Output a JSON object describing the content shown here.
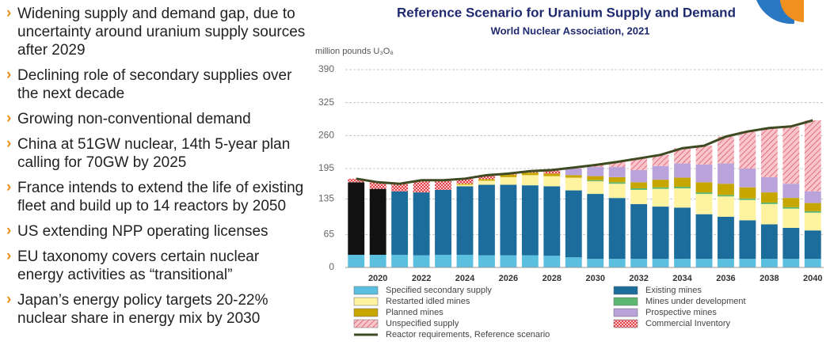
{
  "bullets": [
    "Widening supply and demand gap, due to uncertainty around uranium supply sources after 2029",
    "Declining role of secondary supplies over the next decade",
    "Growing non-conventional demand",
    "China at 51GW nuclear, 14th 5-year plan calling for 70GW by 2025",
    "France intends to extend the life of existing fleet and build up to 14 reactors by 2050",
    "US extending NPP operating licenses",
    "EU taxonomy covers certain nuclear energy activities as “transitional”",
    "Japan’s energy policy targets 20-22% nuclear share in energy mix by 2030"
  ],
  "chart_data": {
    "type": "bar",
    "stacked": true,
    "title": "Reference Scenario for Uranium Supply and Demand",
    "subtitle": "World Nuclear Association, 2021",
    "y_label": "million pounds U₃O₈",
    "categories": [
      null,
      "2020",
      null,
      "2022",
      null,
      "2024",
      null,
      "2026",
      null,
      "2028",
      null,
      "2030",
      null,
      "2032",
      null,
      "2034",
      null,
      "2036",
      null,
      "2038",
      null,
      "2040"
    ],
    "ylim": [
      0,
      390
    ],
    "yticks": [
      0,
      65,
      135,
      195,
      260,
      325,
      390
    ],
    "series": [
      {
        "name": "Specified secondary supply",
        "color": "#5bbfe0",
        "values": [
          25,
          25,
          25,
          24,
          25,
          25,
          24,
          24,
          24,
          23,
          20,
          17,
          17,
          17,
          17,
          17,
          17,
          17,
          17,
          17,
          17,
          17
        ]
      },
      {
        "name": "Existing mines",
        "color": "#1c6d9c",
        "colors": [
          "#111111",
          "#111111",
          null,
          null,
          null,
          null,
          null,
          null,
          null,
          null,
          null,
          null,
          null,
          null,
          null,
          null,
          null,
          null,
          null,
          null,
          null,
          null
        ],
        "values": [
          143,
          130,
          125,
          124,
          128,
          135,
          139,
          139,
          138,
          137,
          132,
          128,
          120,
          108,
          103,
          101,
          88,
          83,
          76,
          68,
          61,
          56
        ]
      },
      {
        "name": "Restarted idled mines",
        "color": "#fff2a0",
        "values": [
          0,
          0,
          0,
          0,
          0,
          3,
          8,
          15,
          20,
          20,
          25,
          25,
          28,
          28,
          35,
          38,
          40,
          40,
          40,
          40,
          38,
          35
        ]
      },
      {
        "name": "Mines under development",
        "color": "#5cb870",
        "values": [
          0,
          0,
          0,
          0,
          0,
          0,
          0,
          0,
          0,
          0,
          0,
          2,
          3,
          3,
          3,
          3,
          3,
          3,
          3,
          3,
          3,
          3
        ]
      },
      {
        "name": "Planned mines",
        "color": "#c8a600",
        "values": [
          0,
          0,
          0,
          0,
          0,
          2,
          3,
          5,
          5,
          5,
          5,
          8,
          10,
          12,
          15,
          18,
          20,
          22,
          22,
          20,
          18,
          16
        ]
      },
      {
        "name": "Prospective mines",
        "color": "#b9a3da",
        "values": [
          0,
          0,
          0,
          0,
          0,
          0,
          0,
          0,
          0,
          0,
          13,
          18,
          20,
          24,
          27,
          28,
          35,
          40,
          37,
          30,
          28,
          23
        ]
      },
      {
        "name": "Unspecified supply",
        "color": "#f2a7b2",
        "hatch": true,
        "values": [
          0,
          0,
          0,
          0,
          0,
          0,
          0,
          0,
          0,
          0,
          2,
          4,
          10,
          23,
          22,
          30,
          37,
          53,
          73,
          97,
          113,
          140
        ]
      },
      {
        "name": "Commercial Inventory",
        "color": "#e0303a",
        "hatch": true,
        "values": [
          7,
          13,
          15,
          24,
          19,
          10,
          8,
          2,
          3,
          7,
          0,
          0,
          0,
          0,
          0,
          0,
          0,
          0,
          0,
          0,
          0,
          0
        ]
      },
      {
        "name": "Reactor requirements, Reference scenario",
        "type": "line",
        "color": "#3e4a22",
        "values": [
          175,
          168,
          165,
          172,
          172,
          175,
          182,
          185,
          190,
          192,
          197,
          202,
          208,
          215,
          222,
          235,
          240,
          258,
          268,
          275,
          278,
          290
        ]
      }
    ]
  }
}
